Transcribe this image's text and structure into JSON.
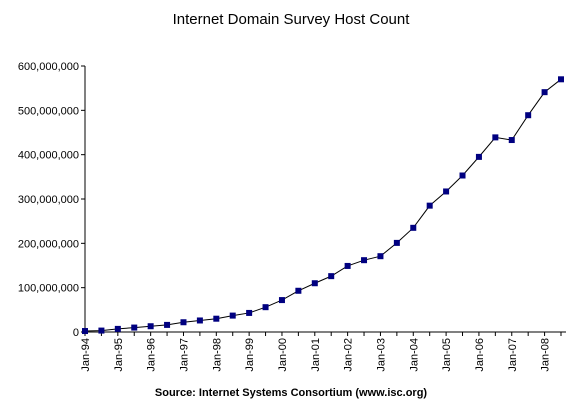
{
  "chart_data": {
    "type": "line",
    "title": "Internet Domain Survey Host Count",
    "source": "Source: Internet Systems Consortium (www.isc.org)",
    "categories": [
      "Jan-94",
      null,
      "Jan-95",
      null,
      "Jan-96",
      null,
      "Jan-97",
      null,
      "Jan-98",
      null,
      "Jan-99",
      null,
      "Jan-00",
      null,
      "Jan-01",
      null,
      "Jan-02",
      null,
      "Jan-03",
      null,
      "Jan-04",
      null,
      "Jan-05",
      null,
      "Jan-06",
      null,
      "Jan-07",
      null,
      "Jan-08",
      null
    ],
    "series": [
      {
        "name": "Host Count",
        "color": "#000080",
        "line_color": "#000000",
        "values": [
          2200000,
          3200000,
          7000000,
          10000000,
          13000000,
          16000000,
          22000000,
          26000000,
          30000000,
          37000000,
          43000000,
          56000000,
          72000000,
          93000000,
          110000000,
          126000000,
          149000000,
          162000000,
          171000000,
          201000000,
          235000000,
          285000000,
          317000000,
          353000000,
          395000000,
          439000000,
          433000000,
          489000000,
          541000000,
          570000000
        ]
      }
    ],
    "ylim": [
      0,
      600000000
    ],
    "yticks": [
      0,
      {
        "value": 100000000,
        "label": "100,000,000"
      },
      {
        "value": 200000000,
        "label": "200,000,000"
      },
      {
        "value": 300000000,
        "label": "300,000,000"
      },
      {
        "value": 400000000,
        "label": "400,000,000"
      },
      {
        "value": 500000000,
        "label": "500,000,000"
      },
      {
        "value": 600000000,
        "label": "600,000,000"
      }
    ],
    "grid": false
  }
}
